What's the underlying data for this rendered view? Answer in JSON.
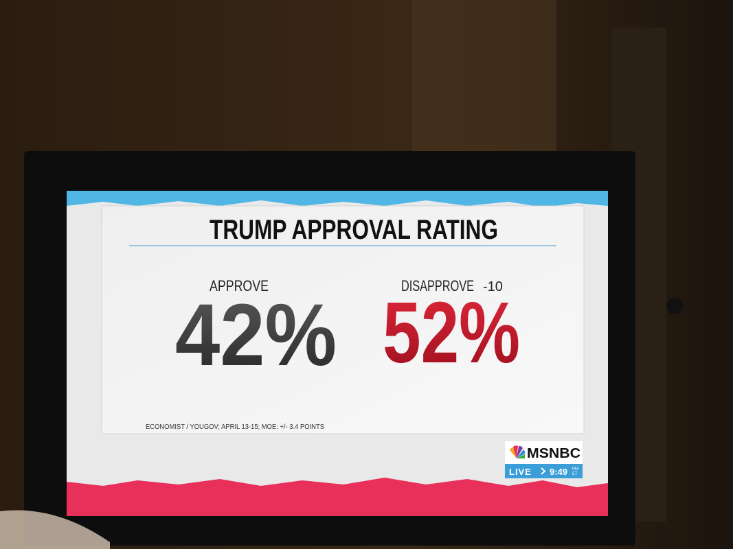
{
  "graphic": {
    "title": "TRUMP APPROVAL RATING",
    "approve": {
      "label": "APPROVE",
      "value": "42%"
    },
    "disapprove": {
      "label": "DISAPPROVE",
      "margin": "-10",
      "value": "52%"
    },
    "source": "ECONOMIST / YOUGOV; APRIL 13-15; MOE: +/- 3.4 POINTS"
  },
  "network": {
    "name": "MSNBC",
    "status": "LIVE",
    "time": "9:49",
    "meridiem": "PM",
    "zone": "ET"
  }
}
